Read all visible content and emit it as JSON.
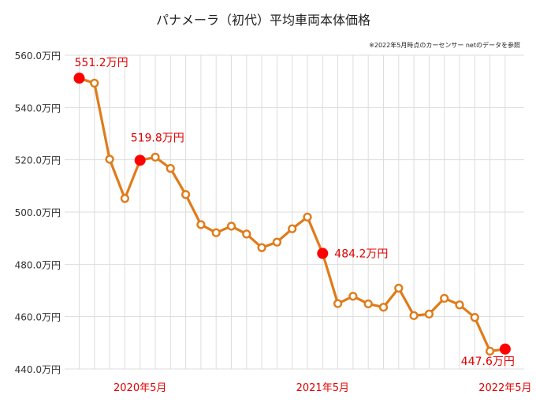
{
  "chart_data": {
    "type": "line",
    "title": "パナメーラ（初代）平均車両本体価格",
    "note": "※2022年5月時点のカーセンサー netのデータを参照",
    "xlabel": "",
    "ylabel": "",
    "ylim": [
      440,
      560
    ],
    "yticks": [
      {
        "value": 560,
        "label": "560.0万円"
      },
      {
        "value": 540,
        "label": "540.0万円"
      },
      {
        "value": 520,
        "label": "520.0万円"
      },
      {
        "value": 500,
        "label": "500.0万円"
      },
      {
        "value": 480,
        "label": "480.0万円"
      },
      {
        "value": 460,
        "label": "460.0万円"
      },
      {
        "value": 440,
        "label": "440.0万円"
      }
    ],
    "xticks": [
      {
        "index": 4,
        "label": "2020年5月"
      },
      {
        "index": 16,
        "label": "2021年5月"
      },
      {
        "index": 28,
        "label": "2022年5月"
      }
    ],
    "grid": true,
    "legend": "none",
    "colors": {
      "line": "#e07b1a",
      "highlight": "#ff0000",
      "label": "#e00000",
      "grid": "#dddddd",
      "axis_text": "#333333"
    },
    "x": [
      "2020年1月",
      "2020年2月",
      "2020年3月",
      "2020年4月",
      "2020年5月",
      "2020年6月",
      "2020年7月",
      "2020年8月",
      "2020年9月",
      "2020年10月",
      "2020年11月",
      "2020年12月",
      "2021年1月",
      "2021年2月",
      "2021年3月",
      "2021年4月",
      "2021年5月",
      "2021年6月",
      "2021年7月",
      "2021年8月",
      "2021年9月",
      "2021年10月",
      "2021年11月",
      "2021年12月",
      "2022年1月",
      "2022年2月",
      "2022年3月",
      "2022年4月",
      "2022年5月"
    ],
    "values": [
      551.2,
      549.3,
      520.2,
      505.2,
      519.8,
      521.0,
      516.7,
      506.7,
      495.2,
      492.1,
      494.6,
      491.6,
      486.4,
      488.5,
      493.6,
      498.1,
      484.2,
      465.0,
      467.8,
      464.9,
      463.6,
      470.9,
      460.4,
      461.0,
      467.0,
      464.5,
      459.7,
      446.8,
      447.6
    ],
    "highlights": [
      {
        "index": 0,
        "label": "551.2万円"
      },
      {
        "index": 4,
        "label": "519.8万円"
      },
      {
        "index": 16,
        "label": "484.2万円"
      },
      {
        "index": 28,
        "label": "447.6万円"
      }
    ]
  }
}
